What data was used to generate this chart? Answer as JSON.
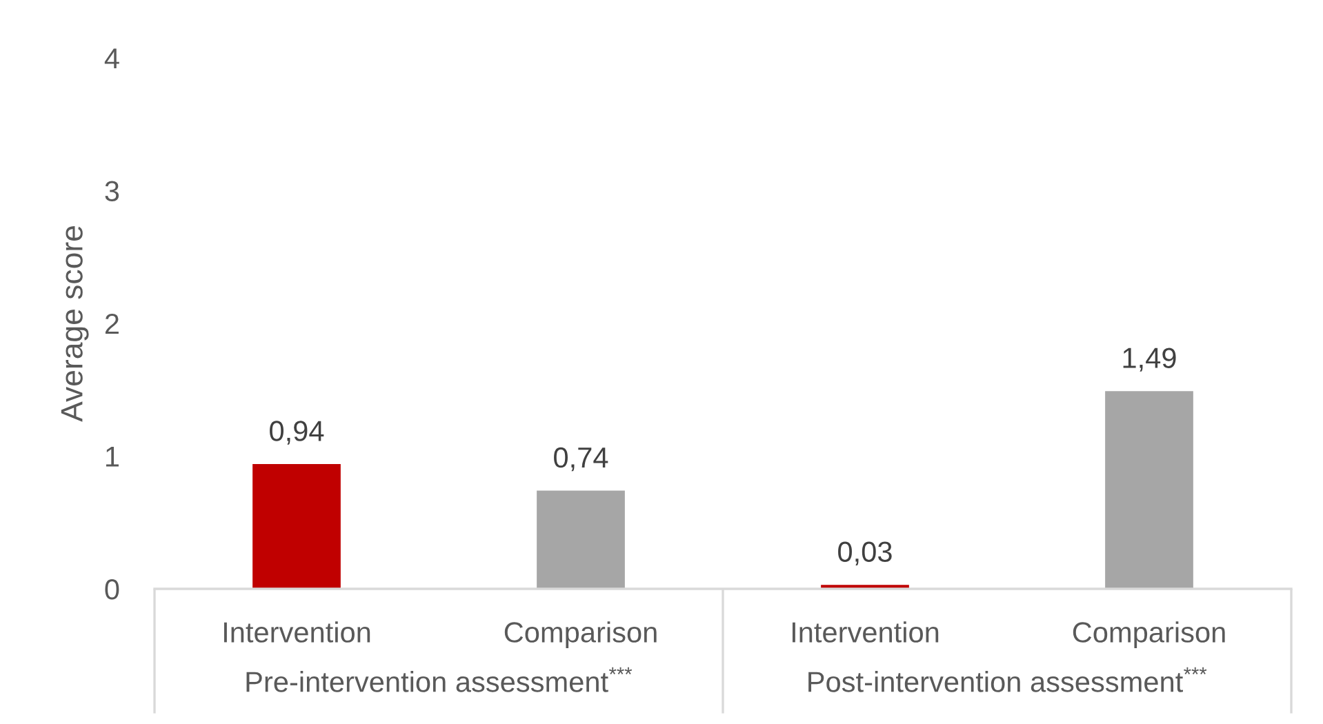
{
  "chart_data": {
    "type": "bar",
    "ylabel": "Average score",
    "categories": [
      "Intervention",
      "Comparison",
      "Intervention",
      "Comparison"
    ],
    "values": [
      0.94,
      0.74,
      0.03,
      1.49
    ],
    "colors": [
      "#c00000",
      "#a6a6a6",
      "#c00000",
      "#a6a6a6"
    ],
    "value_labels": [
      "0,94",
      "0,74",
      "0,03",
      "1,49"
    ],
    "ylim": [
      0,
      4
    ],
    "yticks": [
      0,
      1,
      2,
      3,
      4
    ],
    "annotations": [
      "Pre-intervention assessment$^{***}$",
      "Post-intervention assessment$^{***}$"
    ]
  }
}
